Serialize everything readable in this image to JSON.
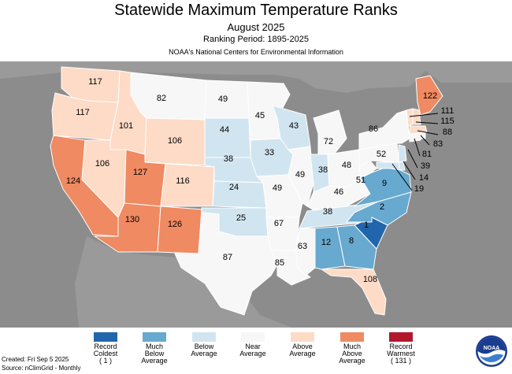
{
  "header": {
    "title": "Statewide Maximum Temperature Ranks",
    "subtitle": "August 2025",
    "period": "Ranking Period: 1895-2025",
    "agency": "NOAA's National Centers for Environmental Information"
  },
  "colors": {
    "record_coldest": "#2166ac",
    "much_below": "#67a9cf",
    "below": "#d1e5f0",
    "near": "#f7f7f7",
    "above": "#fddbc7",
    "much_above": "#ef8a62",
    "record_warmest": "#b2182b",
    "background": "#8c8c8c",
    "water": "#a9a9a9"
  },
  "legend": [
    {
      "line1": "Record",
      "line2": "Coldest",
      "line3": "( 1 )",
      "color": "#2166ac"
    },
    {
      "line1": "Much",
      "line2": "Below",
      "line3": "Average",
      "color": "#67a9cf"
    },
    {
      "line1": "Below",
      "line2": "Average",
      "line3": "",
      "color": "#d1e5f0"
    },
    {
      "line1": "Near",
      "line2": "Average",
      "line3": "",
      "color": "#f7f7f7"
    },
    {
      "line1": "Above",
      "line2": "Average",
      "line3": "",
      "color": "#fddbc7"
    },
    {
      "line1": "Much",
      "line2": "Above",
      "line3": "Average",
      "color": "#ef8a62"
    },
    {
      "line1": "Record",
      "line2": "Warmest",
      "line3": "( 131 )",
      "color": "#b2182b"
    }
  ],
  "states": {
    "WA": "117",
    "OR": "117",
    "CA": "124",
    "ID": "101",
    "NV": "106",
    "MT": "82",
    "WY": "106",
    "UT": "127",
    "AZ": "130",
    "CO": "116",
    "NM": "126",
    "ND": "49",
    "SD": "44",
    "NE": "38",
    "KS": "24",
    "OK": "25",
    "TX": "87",
    "MN": "45",
    "IA": "33",
    "MO": "49",
    "AR": "67",
    "LA": "85",
    "WI": "43",
    "IL": "49",
    "MI": "72",
    "IN": "38",
    "OH": "48",
    "KY": "46",
    "TN": "38",
    "MS": "63",
    "AL": "12",
    "GA": "8",
    "FL": "108",
    "SC": "1",
    "NC": "2",
    "VA": "9",
    "WV": "51",
    "PA": "52",
    "NY": "86",
    "ME": "122",
    "VT": "111",
    "NH": "115",
    "MA": "88",
    "RI": "83",
    "CT": "81",
    "NJ": "39",
    "DE": "14",
    "MD": "19"
  },
  "footer": {
    "created": "Created: Fri Sep  5 2025",
    "source": "Source: nClimGrid - Monthly"
  },
  "logo_text": "NOAA"
}
